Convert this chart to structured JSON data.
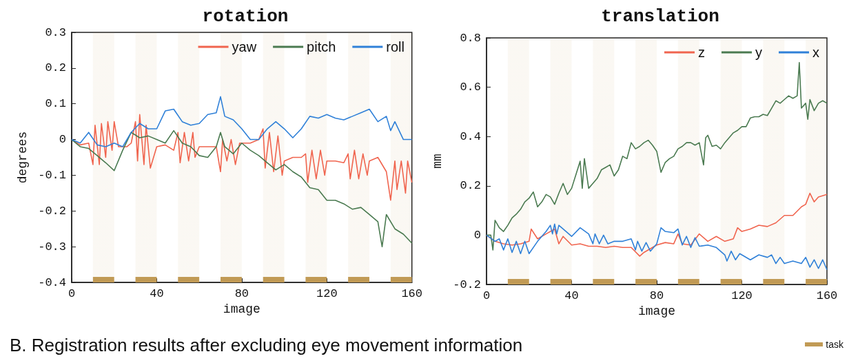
{
  "chart_data": [
    {
      "type": "line",
      "title": "rotation",
      "xlabel": "image",
      "ylabel": "degrees",
      "xlim": [
        0,
        160
      ],
      "xticks": [
        0,
        40,
        80,
        120,
        160
      ],
      "ylim": [
        -0.4,
        0.3
      ],
      "yticks": [
        -0.4,
        -0.3,
        -0.2,
        -0.1,
        0,
        0.1,
        0.2,
        0.3
      ],
      "grid": false,
      "legend": "top right",
      "marker": "none",
      "line_style": "solid",
      "annotations": [
        "B. Registration results after excluding eye movement information"
      ],
      "bands": [
        {
          "axis": "x",
          "from": 10,
          "to": 20,
          "color": "#c19a55"
        },
        {
          "axis": "x",
          "from": 30,
          "to": 40,
          "color": "#c19a55"
        },
        {
          "axis": "x",
          "from": 50,
          "to": 60,
          "color": "#c19a55"
        },
        {
          "axis": "x",
          "from": 70,
          "to": 80,
          "color": "#c19a55"
        },
        {
          "axis": "x",
          "from": 90,
          "to": 100,
          "color": "#c19a55"
        },
        {
          "axis": "x",
          "from": 110,
          "to": 120,
          "color": "#c19a55"
        },
        {
          "axis": "x",
          "from": 130,
          "to": 140,
          "color": "#c19a55"
        },
        {
          "axis": "x",
          "from": 150,
          "to": 160,
          "color": "#c19a55"
        }
      ],
      "series": [
        {
          "name": "yaw",
          "color": "#f0644e",
          "x": [
            0,
            4,
            8,
            10,
            11,
            13,
            14,
            16,
            17,
            19,
            20,
            22,
            26,
            28,
            30,
            31,
            32,
            34,
            35,
            37,
            40,
            44,
            48,
            50,
            51,
            53,
            55,
            57,
            58,
            60,
            64,
            68,
            70,
            71,
            73,
            75,
            77,
            79,
            80,
            84,
            88,
            90,
            91,
            93,
            95,
            97,
            99,
            100,
            104,
            108,
            110,
            111,
            113,
            115,
            117,
            119,
            120,
            124,
            128,
            130,
            131,
            133,
            135,
            137,
            139,
            140,
            144,
            148,
            150,
            152,
            153,
            155,
            157,
            158,
            160
          ],
          "values": [
            0,
            -0.015,
            -0.01,
            -0.07,
            0.04,
            -0.07,
            0.045,
            -0.05,
            0.05,
            -0.03,
            0.05,
            -0.02,
            -0.02,
            -0.01,
            0.05,
            -0.06,
            0.07,
            -0.07,
            0.04,
            -0.08,
            -0.02,
            -0.015,
            -0.03,
            0.02,
            -0.065,
            0.02,
            -0.06,
            0.02,
            -0.05,
            -0.02,
            -0.02,
            -0.02,
            -0.09,
            0,
            -0.06,
            0,
            -0.07,
            -0.01,
            -0.01,
            -0.01,
            0,
            0.03,
            -0.08,
            0.02,
            -0.09,
            0.01,
            -0.1,
            -0.06,
            -0.05,
            -0.05,
            -0.04,
            -0.12,
            -0.03,
            -0.11,
            -0.03,
            -0.1,
            -0.06,
            -0.06,
            -0.065,
            -0.04,
            -0.11,
            -0.03,
            -0.11,
            -0.04,
            -0.1,
            -0.06,
            -0.05,
            -0.09,
            -0.17,
            -0.06,
            -0.14,
            -0.06,
            -0.15,
            -0.06,
            -0.12
          ]
        },
        {
          "name": "pitch",
          "color": "#4a7a50",
          "x": [
            0,
            4,
            8,
            12,
            16,
            20,
            24,
            28,
            32,
            36,
            40,
            44,
            48,
            52,
            56,
            60,
            64,
            68,
            70,
            72,
            76,
            80,
            84,
            88,
            92,
            96,
            100,
            104,
            108,
            112,
            116,
            120,
            124,
            128,
            132,
            136,
            140,
            144,
            146,
            148,
            152,
            156,
            160
          ],
          "values": [
            0,
            -0.02,
            -0.025,
            -0.045,
            -0.065,
            -0.087,
            -0.03,
            0.02,
            0.005,
            0.01,
            0,
            -0.01,
            0.025,
            -0.01,
            -0.02,
            -0.045,
            -0.05,
            -0.02,
            0.02,
            -0.02,
            -0.04,
            -0.01,
            -0.03,
            -0.045,
            -0.065,
            -0.085,
            -0.07,
            -0.09,
            -0.105,
            -0.135,
            -0.14,
            -0.17,
            -0.17,
            -0.18,
            -0.195,
            -0.19,
            -0.21,
            -0.23,
            -0.3,
            -0.21,
            -0.25,
            -0.265,
            -0.29
          ]
        },
        {
          "name": "roll",
          "color": "#2f80d8",
          "x": [
            0,
            4,
            8,
            12,
            16,
            20,
            24,
            28,
            32,
            36,
            40,
            44,
            48,
            52,
            56,
            60,
            64,
            68,
            70,
            72,
            76,
            80,
            84,
            88,
            92,
            96,
            100,
            104,
            108,
            112,
            116,
            120,
            124,
            128,
            132,
            136,
            140,
            144,
            148,
            150,
            152,
            156,
            160
          ],
          "values": [
            0,
            -0.01,
            0.02,
            -0.015,
            -0.02,
            -0.01,
            -0.02,
            0.02,
            0.045,
            0.03,
            0.03,
            0.08,
            0.085,
            0.05,
            0.04,
            0.045,
            0.07,
            0.075,
            0.12,
            0.065,
            0.055,
            0.03,
            0,
            0,
            0.03,
            0.05,
            0.03,
            0.005,
            0.03,
            0.065,
            0.06,
            0.07,
            0.06,
            0.055,
            0.065,
            0.075,
            0.085,
            0.05,
            0.065,
            0.025,
            0.05,
            0,
            0
          ]
        }
      ]
    },
    {
      "type": "line",
      "title": "translation",
      "xlabel": "image",
      "ylabel": "mm",
      "xlim": [
        0,
        160
      ],
      "xticks": [
        0,
        40,
        80,
        120,
        160
      ],
      "ylim": [
        -0.2,
        0.8
      ],
      "yticks": [
        -0.2,
        0,
        0.2,
        0.4,
        0.6,
        0.8
      ],
      "grid": false,
      "legend": "top right",
      "marker": "none",
      "line_style": "solid",
      "annotations": [
        "task"
      ],
      "bands": [
        {
          "axis": "x",
          "from": 10,
          "to": 20,
          "color": "#c19a55"
        },
        {
          "axis": "x",
          "from": 30,
          "to": 40,
          "color": "#c19a55"
        },
        {
          "axis": "x",
          "from": 50,
          "to": 60,
          "color": "#c19a55"
        },
        {
          "axis": "x",
          "from": 70,
          "to": 80,
          "color": "#c19a55"
        },
        {
          "axis": "x",
          "from": 90,
          "to": 100,
          "color": "#c19a55"
        },
        {
          "axis": "x",
          "from": 110,
          "to": 120,
          "color": "#c19a55"
        },
        {
          "axis": "x",
          "from": 130,
          "to": 140,
          "color": "#c19a55"
        },
        {
          "axis": "x",
          "from": 150,
          "to": 160,
          "color": "#c19a55"
        }
      ],
      "series": [
        {
          "name": "z",
          "color": "#f0644e",
          "x": [
            0,
            4,
            8,
            12,
            16,
            20,
            21,
            24,
            28,
            32,
            34,
            36,
            40,
            44,
            48,
            52,
            56,
            60,
            64,
            68,
            72,
            74,
            78,
            80,
            84,
            88,
            90,
            92,
            96,
            100,
            104,
            108,
            112,
            116,
            118,
            120,
            124,
            128,
            132,
            136,
            140,
            144,
            148,
            150,
            152,
            154,
            156,
            160
          ],
          "values": [
            0,
            -0.025,
            -0.035,
            -0.04,
            -0.035,
            -0.025,
            0.025,
            -0.015,
            0.005,
            0.025,
            -0.035,
            -0.005,
            -0.04,
            -0.035,
            -0.045,
            -0.045,
            -0.05,
            -0.045,
            -0.05,
            -0.05,
            -0.085,
            -0.07,
            -0.05,
            -0.04,
            -0.03,
            -0.035,
            0.005,
            -0.035,
            -0.04,
            0.005,
            -0.025,
            -0.005,
            -0.025,
            -0.015,
            0.03,
            0.015,
            0.025,
            0.04,
            0.035,
            0.05,
            0.08,
            0.08,
            0.115,
            0.125,
            0.17,
            0.135,
            0.155,
            0.165
          ]
        },
        {
          "name": "y",
          "color": "#4a7a50",
          "x": [
            0,
            2,
            3,
            4,
            6,
            8,
            10,
            12,
            14,
            16,
            18,
            20,
            22,
            24,
            26,
            28,
            30,
            32,
            34,
            36,
            38,
            40,
            42,
            44,
            45,
            46,
            48,
            50,
            52,
            54,
            56,
            58,
            60,
            62,
            64,
            66,
            68,
            70,
            72,
            74,
            76,
            78,
            80,
            82,
            84,
            86,
            88,
            90,
            92,
            94,
            96,
            98,
            100,
            102,
            103,
            104,
            106,
            108,
            110,
            112,
            114,
            116,
            118,
            120,
            122,
            124,
            126,
            128,
            130,
            132,
            134,
            136,
            138,
            140,
            142,
            144,
            146,
            147,
            148,
            150,
            151,
            152,
            154,
            156,
            158,
            160
          ],
          "values": [
            0,
            0,
            -0.06,
            0.06,
            0.03,
            0.015,
            0.04,
            0.07,
            0.085,
            0.105,
            0.135,
            0.15,
            0.175,
            0.115,
            0.135,
            0.165,
            0.155,
            0.125,
            0.17,
            0.21,
            0.165,
            0.19,
            0.245,
            0.3,
            0.19,
            0.31,
            0.19,
            0.21,
            0.23,
            0.265,
            0.275,
            0.285,
            0.24,
            0.265,
            0.32,
            0.31,
            0.375,
            0.35,
            0.36,
            0.375,
            0.385,
            0.365,
            0.34,
            0.255,
            0.295,
            0.31,
            0.32,
            0.35,
            0.36,
            0.375,
            0.375,
            0.365,
            0.375,
            0.285,
            0.395,
            0.405,
            0.36,
            0.365,
            0.35,
            0.375,
            0.395,
            0.415,
            0.425,
            0.44,
            0.44,
            0.475,
            0.48,
            0.48,
            0.49,
            0.485,
            0.515,
            0.545,
            0.535,
            0.55,
            0.565,
            0.555,
            0.565,
            0.7,
            0.515,
            0.535,
            0.47,
            0.55,
            0.505,
            0.535,
            0.545,
            0.535
          ]
        },
        {
          "name": "x",
          "color": "#2f80d8",
          "x": [
            0,
            4,
            6,
            8,
            10,
            12,
            14,
            16,
            18,
            20,
            24,
            28,
            30,
            31,
            32,
            33,
            34,
            36,
            40,
            44,
            48,
            50,
            51,
            53,
            55,
            57,
            60,
            64,
            68,
            70,
            71,
            73,
            75,
            77,
            80,
            82,
            84,
            88,
            90,
            92,
            94,
            96,
            98,
            100,
            104,
            108,
            112,
            113,
            115,
            117,
            119,
            120,
            124,
            128,
            132,
            134,
            136,
            138,
            140,
            144,
            148,
            150,
            152,
            154,
            156,
            158,
            160
          ],
          "values": [
            0,
            -0.025,
            -0.015,
            -0.06,
            -0.015,
            -0.07,
            -0.025,
            -0.075,
            -0.025,
            -0.075,
            -0.025,
            0.015,
            0.04,
            0.005,
            0.045,
            0.005,
            0.04,
            0.025,
            -0.005,
            0.03,
            0.005,
            -0.035,
            0.005,
            -0.035,
            0,
            -0.035,
            -0.025,
            -0.025,
            -0.015,
            -0.06,
            -0.025,
            -0.065,
            -0.03,
            -0.065,
            -0.035,
            0.03,
            0.015,
            0.01,
            0.025,
            -0.04,
            -0.005,
            -0.05,
            -0.01,
            -0.045,
            -0.04,
            -0.05,
            -0.08,
            -0.105,
            -0.065,
            -0.1,
            -0.075,
            -0.08,
            -0.1,
            -0.08,
            -0.09,
            -0.08,
            -0.115,
            -0.09,
            -0.115,
            -0.105,
            -0.115,
            -0.09,
            -0.13,
            -0.1,
            -0.135,
            -0.1,
            -0.14
          ]
        }
      ]
    }
  ]
}
